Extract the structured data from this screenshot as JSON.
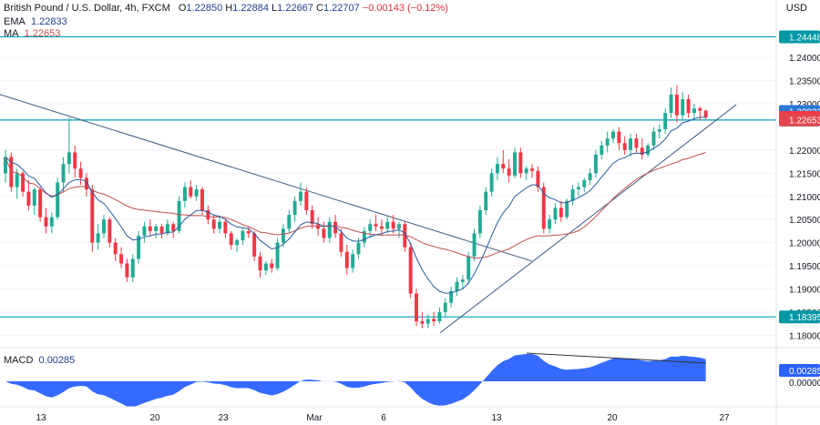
{
  "header": {
    "symbol": "British Pound / U.S. Dollar, 4h, FXCM",
    "open_label": "O",
    "open": "1.22850",
    "high_label": "H",
    "high": "1.22884",
    "low_label": "L",
    "low": "1.22667",
    "close_label": "C",
    "close": "1.22707",
    "change": "−0.00143 (−0.12%)"
  },
  "indicators": {
    "ema_label": "EMA",
    "ema_value": "1.22833",
    "ma_label": "MA",
    "ma_value": "1.22653",
    "macd_label": "MACD",
    "macd_value": "0.00285"
  },
  "currency": "USD",
  "colors": {
    "up": "#22ab94",
    "down": "#f23645",
    "ema": "#2a5b9f",
    "ma": "#c0504d",
    "level": "#00a0c0",
    "trend": "#3d5a80",
    "macd": "#2962ff",
    "ema_badge": "#2a78d6",
    "close_badge": "#f23645",
    "ma_badge": "#e4444d",
    "level_badge": "#0097a7"
  },
  "chart_data": {
    "type": "candlestick",
    "x_ticks": [
      "13",
      "20",
      "23",
      "Mar",
      "6",
      "13",
      "20",
      "27"
    ],
    "y_ticks": [
      "1.24000",
      "1.23500",
      "1.23000",
      "1.22000",
      "1.21500",
      "1.21000",
      "1.20500",
      "1.20000",
      "1.19500",
      "1.19000",
      "1.18500",
      "1.18000"
    ],
    "y_range": [
      1.1775,
      1.2485
    ],
    "macd_axis_label": "0.00000",
    "levels": [
      {
        "label": "1.24448",
        "value": 1.24448
      },
      {
        "label": "1.22650",
        "value": 1.2265
      },
      {
        "label": "1.18395",
        "value": 1.18395
      }
    ],
    "badges": [
      {
        "label": "1.22833",
        "value": 1.22833,
        "kind": "ema"
      },
      {
        "label": "1.22707",
        "value": 1.22707,
        "kind": "close"
      },
      {
        "label": "1.22653",
        "value": 1.22653,
        "kind": "ma"
      }
    ],
    "macd_badge": "0.00285",
    "candles": [
      [
        1.215,
        1.22,
        1.213,
        1.2185
      ],
      [
        1.2185,
        1.2195,
        1.211,
        1.212
      ],
      [
        1.212,
        1.216,
        1.2095,
        1.215
      ],
      [
        1.215,
        1.2155,
        1.21,
        1.211
      ],
      [
        1.211,
        1.2135,
        1.207,
        1.208
      ],
      [
        1.208,
        1.212,
        1.206,
        1.2115
      ],
      [
        1.2115,
        1.212,
        1.2045,
        1.2055
      ],
      [
        1.2055,
        1.2075,
        1.202,
        1.2035
      ],
      [
        1.2035,
        1.2065,
        1.202,
        1.2055
      ],
      [
        1.2055,
        1.214,
        1.205,
        1.213
      ],
      [
        1.213,
        1.2185,
        1.211,
        1.217
      ],
      [
        1.217,
        1.227,
        1.215,
        1.2195
      ],
      [
        1.2195,
        1.221,
        1.214,
        1.216
      ],
      [
        1.216,
        1.2175,
        1.2125,
        1.214
      ],
      [
        1.214,
        1.215,
        1.21,
        1.2115
      ],
      [
        1.2115,
        1.2125,
        1.198,
        1.2
      ],
      [
        1.2,
        1.204,
        1.1985,
        1.202
      ],
      [
        1.202,
        1.206,
        1.201,
        1.205
      ],
      [
        1.205,
        1.2055,
        1.199,
        1.2
      ],
      [
        1.2,
        1.201,
        1.196,
        1.1975
      ],
      [
        1.1975,
        1.199,
        1.1945,
        1.1955
      ],
      [
        1.1955,
        1.1965,
        1.1915,
        1.1925
      ],
      [
        1.1925,
        1.1975,
        1.1915,
        1.1965
      ],
      [
        1.1965,
        1.2025,
        1.1955,
        1.2015
      ],
      [
        1.2015,
        1.2045,
        1.2,
        1.2035
      ],
      [
        1.2035,
        1.205,
        1.2015,
        1.2025
      ],
      [
        1.2025,
        1.204,
        1.201,
        1.2035
      ],
      [
        1.2035,
        1.204,
        1.201,
        1.202
      ],
      [
        1.202,
        1.205,
        1.2015,
        1.204
      ],
      [
        1.204,
        1.2045,
        1.201,
        1.2025
      ],
      [
        1.2025,
        1.21,
        1.202,
        1.209
      ],
      [
        1.209,
        1.213,
        1.2075,
        1.212
      ],
      [
        1.212,
        1.2135,
        1.2095,
        1.21
      ],
      [
        1.21,
        1.2125,
        1.209,
        1.2115
      ],
      [
        1.2115,
        1.212,
        1.206,
        1.207
      ],
      [
        1.207,
        1.208,
        1.204,
        1.205
      ],
      [
        1.205,
        1.206,
        1.202,
        1.203
      ],
      [
        1.203,
        1.2055,
        1.202,
        1.2045
      ],
      [
        1.2045,
        1.205,
        1.201,
        1.202
      ],
      [
        1.202,
        1.2025,
        1.1985,
        1.1995
      ],
      [
        1.1995,
        1.201,
        1.198,
        1.2005
      ],
      [
        1.2005,
        1.203,
        1.1995,
        1.2025
      ],
      [
        1.2025,
        1.2035,
        1.201,
        1.202
      ],
      [
        1.202,
        1.2025,
        1.196,
        1.197
      ],
      [
        1.197,
        1.198,
        1.1925,
        1.194
      ],
      [
        1.194,
        1.196,
        1.193,
        1.1955
      ],
      [
        1.1955,
        1.1965,
        1.1935,
        1.1945
      ],
      [
        1.1945,
        1.201,
        1.194,
        1.2
      ],
      [
        1.2,
        1.204,
        1.199,
        1.203
      ],
      [
        1.203,
        1.207,
        1.202,
        1.206
      ],
      [
        1.206,
        1.21,
        1.2045,
        1.209
      ],
      [
        1.209,
        1.213,
        1.208,
        1.211
      ],
      [
        1.211,
        1.212,
        1.206,
        1.207
      ],
      [
        1.207,
        1.208,
        1.203,
        1.204
      ],
      [
        1.204,
        1.2055,
        1.2015,
        1.203
      ],
      [
        1.203,
        1.2045,
        1.2,
        1.201
      ],
      [
        1.201,
        1.2055,
        1.2,
        1.2045
      ],
      [
        1.2045,
        1.206,
        1.201,
        1.202
      ],
      [
        1.202,
        1.203,
        1.197,
        1.198
      ],
      [
        1.198,
        1.1995,
        1.193,
        1.1945
      ],
      [
        1.1945,
        1.1985,
        1.1935,
        1.1975
      ],
      [
        1.1975,
        1.201,
        1.1965,
        1.2
      ],
      [
        1.2,
        1.2035,
        1.199,
        1.2025
      ],
      [
        1.2025,
        1.205,
        1.201,
        1.204
      ],
      [
        1.204,
        1.206,
        1.2025,
        1.2035
      ],
      [
        1.2035,
        1.205,
        1.2015,
        1.203
      ],
      [
        1.203,
        1.2055,
        1.202,
        1.2045
      ],
      [
        1.2045,
        1.206,
        1.202,
        1.203
      ],
      [
        1.203,
        1.2045,
        1.201,
        1.204
      ],
      [
        1.204,
        1.2045,
        1.198,
        1.199
      ],
      [
        1.199,
        1.2,
        1.188,
        1.189
      ],
      [
        1.189,
        1.19,
        1.182,
        1.183
      ],
      [
        1.183,
        1.185,
        1.1815,
        1.1825
      ],
      [
        1.1825,
        1.1845,
        1.1815,
        1.1835
      ],
      [
        1.1835,
        1.185,
        1.182,
        1.183
      ],
      [
        1.183,
        1.186,
        1.1825,
        1.185
      ],
      [
        1.185,
        1.188,
        1.184,
        1.187
      ],
      [
        1.187,
        1.1905,
        1.186,
        1.1895
      ],
      [
        1.1895,
        1.1925,
        1.1885,
        1.1915
      ],
      [
        1.1915,
        1.193,
        1.19,
        1.192
      ],
      [
        1.192,
        1.198,
        1.191,
        1.197
      ],
      [
        1.197,
        1.203,
        1.196,
        1.202
      ],
      [
        1.202,
        1.208,
        1.201,
        1.207
      ],
      [
        1.207,
        1.212,
        1.206,
        1.211
      ],
      [
        1.211,
        1.216,
        1.21,
        1.215
      ],
      [
        1.215,
        1.2185,
        1.2135,
        1.217
      ],
      [
        1.217,
        1.22,
        1.215,
        1.216
      ],
      [
        1.216,
        1.218,
        1.213,
        1.2145
      ],
      [
        1.2145,
        1.2205,
        1.214,
        1.2195
      ],
      [
        1.2195,
        1.2205,
        1.214,
        1.215
      ],
      [
        1.215,
        1.2165,
        1.2135,
        1.216
      ],
      [
        1.216,
        1.217,
        1.214,
        1.2155
      ],
      [
        1.2155,
        1.2165,
        1.211,
        1.212
      ],
      [
        1.212,
        1.213,
        1.202,
        1.203
      ],
      [
        1.203,
        1.206,
        1.202,
        1.205
      ],
      [
        1.205,
        1.2085,
        1.204,
        1.2075
      ],
      [
        1.2075,
        1.209,
        1.2045,
        1.2055
      ],
      [
        1.2055,
        1.2095,
        1.205,
        1.209
      ],
      [
        1.209,
        1.2125,
        1.208,
        1.2115
      ],
      [
        1.2115,
        1.213,
        1.21,
        1.212
      ],
      [
        1.212,
        1.214,
        1.211,
        1.2135
      ],
      [
        1.2135,
        1.216,
        1.2125,
        1.215
      ],
      [
        1.215,
        1.22,
        1.214,
        1.219
      ],
      [
        1.219,
        1.222,
        1.218,
        1.221
      ],
      [
        1.221,
        1.224,
        1.2195,
        1.2225
      ],
      [
        1.2225,
        1.2245,
        1.2215,
        1.224
      ],
      [
        1.224,
        1.225,
        1.22,
        1.2215
      ],
      [
        1.2215,
        1.223,
        1.219,
        1.22
      ],
      [
        1.22,
        1.2235,
        1.2185,
        1.2225
      ],
      [
        1.2225,
        1.2235,
        1.2195,
        1.2205
      ],
      [
        1.2205,
        1.2225,
        1.218,
        1.219
      ],
      [
        1.219,
        1.2215,
        1.2185,
        1.221
      ],
      [
        1.221,
        1.225,
        1.22,
        1.224
      ],
      [
        1.224,
        1.2255,
        1.2225,
        1.2245
      ],
      [
        1.2245,
        1.229,
        1.2235,
        1.228
      ],
      [
        1.228,
        1.2335,
        1.227,
        1.232
      ],
      [
        1.232,
        1.234,
        1.226,
        1.2275
      ],
      [
        1.2275,
        1.2325,
        1.2265,
        1.231
      ],
      [
        1.231,
        1.232,
        1.227,
        1.228
      ],
      [
        1.228,
        1.23,
        1.2265,
        1.229
      ],
      [
        1.229,
        1.2295,
        1.2265,
        1.2285
      ],
      [
        1.2285,
        1.2288,
        1.2266,
        1.2271
      ]
    ]
  }
}
